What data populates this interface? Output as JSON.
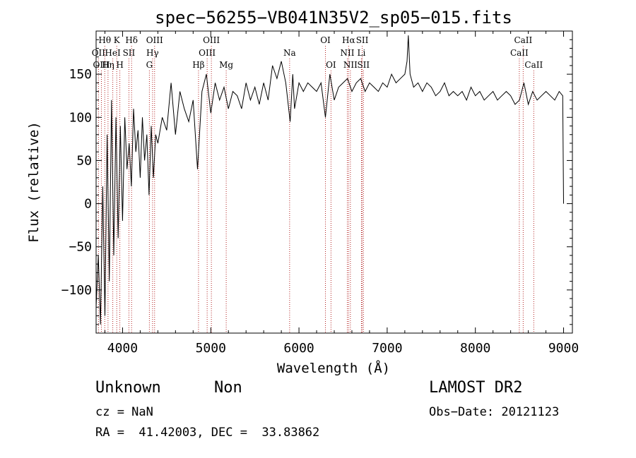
{
  "chart_data": {
    "type": "line",
    "title": "spec−56255−VB041N35V2_sp05−015.fits",
    "xlabel": "Wavelength (Å)",
    "ylabel": "Flux (relative)",
    "xlim": [
      3700,
      9100
    ],
    "ylim": [
      -150,
      200
    ],
    "xticks": [
      4000,
      5000,
      6000,
      7000,
      8000,
      9000
    ],
    "yticks": [
      -100,
      -50,
      0,
      50,
      100,
      150
    ],
    "ytick_labels": [
      "−100",
      "−50",
      "0",
      "50",
      "100",
      "150"
    ],
    "spectral_lines": [
      {
        "label": "Hθ",
        "wavelength": 3798,
        "row": 1
      },
      {
        "label": "OII",
        "wavelength": 3727,
        "row": 2
      },
      {
        "label": "OIII",
        "wavelength": 3760,
        "row": 3
      },
      {
        "label": "K",
        "wavelength": 3934,
        "row": 1
      },
      {
        "label": "HeI",
        "wavelength": 3889,
        "row": 2
      },
      {
        "label": "Hη",
        "wavelength": 3835,
        "row": 3
      },
      {
        "label": "H",
        "wavelength": 3969,
        "row": 3
      },
      {
        "label": "Hδ",
        "wavelength": 4102,
        "row": 1
      },
      {
        "label": "SII",
        "wavelength": 4072,
        "row": 2
      },
      {
        "label": "OIII",
        "wavelength": 4363,
        "row": 1
      },
      {
        "label": "Hγ",
        "wavelength": 4340,
        "row": 2
      },
      {
        "label": "G",
        "wavelength": 4304,
        "row": 3
      },
      {
        "label": "Hβ",
        "wavelength": 4861,
        "row": 3
      },
      {
        "label": "OIII",
        "wavelength": 5007,
        "row": 1
      },
      {
        "label": "OIII",
        "wavelength": 4959,
        "row": 2
      },
      {
        "label": "Mg",
        "wavelength": 5175,
        "row": 3
      },
      {
        "label": "Na",
        "wavelength": 5894,
        "row": 2
      },
      {
        "label": "OI",
        "wavelength": 6300,
        "row": 1
      },
      {
        "label": "OI",
        "wavelength": 6363,
        "row": 3
      },
      {
        "label": "Hα",
        "wavelength": 6563,
        "row": 1
      },
      {
        "label": "NII",
        "wavelength": 6548,
        "row": 2
      },
      {
        "label": "NII",
        "wavelength": 6583,
        "row": 3
      },
      {
        "label": "SII",
        "wavelength": 6717,
        "row": 1
      },
      {
        "label": "Li",
        "wavelength": 6708,
        "row": 2
      },
      {
        "label": "SII",
        "wavelength": 6731,
        "row": 3
      },
      {
        "label": "CaII",
        "wavelength": 8542,
        "row": 1
      },
      {
        "label": "CaII",
        "wavelength": 8498,
        "row": 2
      },
      {
        "label": "CaII",
        "wavelength": 8662,
        "row": 3
      }
    ],
    "series": [
      {
        "x": [
          3700,
          3725,
          3750,
          3775,
          3800,
          3825,
          3850,
          3875,
          3900,
          3925,
          3950,
          3975,
          4000,
          4025,
          4050,
          4075,
          4100,
          4125,
          4150,
          4175,
          4200,
          4225,
          4250,
          4275,
          4300,
          4325,
          4350,
          4375,
          4400,
          4450,
          4500,
          4550,
          4600,
          4650,
          4700,
          4750,
          4800,
          4850,
          4900,
          4950,
          5000,
          5050,
          5100,
          5150,
          5200,
          5250,
          5300,
          5350,
          5400,
          5450,
          5500,
          5550,
          5600,
          5650,
          5700,
          5750,
          5800,
          5850,
          5900,
          5930,
          5950,
          6000,
          6050,
          6100,
          6150,
          6200,
          6250,
          6300,
          6350,
          6400,
          6450,
          6500,
          6550,
          6600,
          6650,
          6700,
          6750,
          6800,
          6850,
          6900,
          6950,
          7000,
          7050,
          7100,
          7150,
          7200,
          7225,
          7240,
          7260,
          7300,
          7350,
          7400,
          7450,
          7500,
          7550,
          7600,
          7650,
          7700,
          7750,
          7800,
          7850,
          7900,
          7950,
          8000,
          8050,
          8100,
          8150,
          8200,
          8250,
          8300,
          8350,
          8400,
          8450,
          8500,
          8550,
          8600,
          8650,
          8700,
          8750,
          8800,
          8850,
          8900,
          8950,
          8990,
          9000
        ],
        "y": [
          -120,
          -60,
          -140,
          20,
          -130,
          80,
          -90,
          120,
          -60,
          100,
          -40,
          90,
          -20,
          100,
          40,
          70,
          20,
          110,
          60,
          85,
          30,
          100,
          50,
          80,
          10,
          90,
          30,
          80,
          70,
          100,
          85,
          140,
          80,
          130,
          110,
          95,
          120,
          40,
          130,
          150,
          105,
          140,
          120,
          135,
          110,
          130,
          125,
          110,
          140,
          120,
          135,
          115,
          140,
          120,
          160,
          145,
          165,
          140,
          95,
          150,
          110,
          140,
          130,
          140,
          135,
          130,
          140,
          100,
          150,
          120,
          135,
          140,
          145,
          130,
          140,
          145,
          130,
          140,
          135,
          130,
          140,
          135,
          150,
          140,
          145,
          150,
          165,
          195,
          150,
          135,
          140,
          130,
          140,
          135,
          125,
          130,
          140,
          125,
          130,
          125,
          130,
          120,
          135,
          125,
          130,
          120,
          125,
          130,
          120,
          125,
          130,
          125,
          115,
          120,
          140,
          115,
          130,
          120,
          125,
          130,
          125,
          120,
          130,
          125,
          0
        ]
      }
    ]
  },
  "info": {
    "object_class": "Unknown",
    "subclass": "Non",
    "survey": "LAMOST DR2",
    "cz_text": "cz = NaN",
    "obs_date_text": "Obs−Date: 20121123",
    "coords_text": "RA =  41.42003, DEC =  33.83862"
  }
}
